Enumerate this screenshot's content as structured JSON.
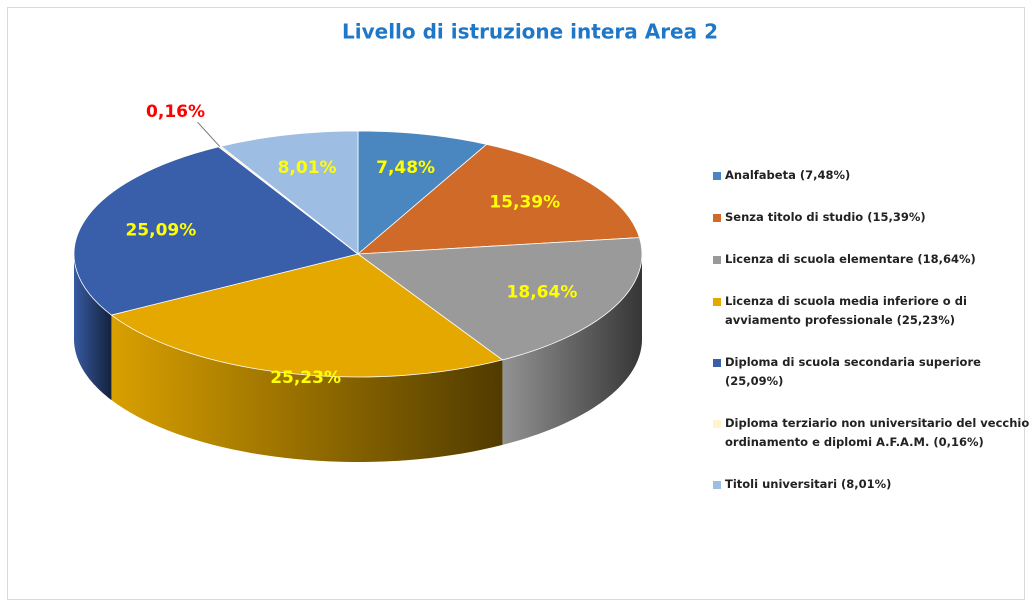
{
  "chart_data": {
    "type": "pie3d",
    "title": "Livello di istruzione intera Area 2",
    "categories": [
      "Analfabeta   (7,48%)",
      "Senza titolo di studio  (15,39%)",
      "Licenza di scuola elementare (18,64%)",
      "Licenza di scuola media inferiore o di avviamento professionale  (25,23%)",
      "Diploma di scuola secondaria superiore  (25,09%)",
      "Diploma terziario non universitario del vecchio ordinamento e diplomi A.F.A.M.  (0,16%)",
      "Titoli universitari  (8,01%)"
    ],
    "values": [
      7.48,
      15.39,
      18.64,
      25.23,
      25.09,
      0.16,
      8.01
    ],
    "value_labels": [
      "7,48%",
      "15,39%",
      "18,64%",
      "25,23%",
      "25,09%",
      "0,16%",
      "8,01%"
    ],
    "colors": [
      "#4a86c0",
      "#d06a28",
      "#9a9a9a",
      "#e4a800",
      "#3a5faa",
      "#fff2cc",
      "#9dbde3"
    ],
    "value_label_colors": [
      "#ffff00",
      "#ffff00",
      "#ffff00",
      "#ffff00",
      "#ffff00",
      "#ff0000",
      "#ffff00"
    ]
  }
}
